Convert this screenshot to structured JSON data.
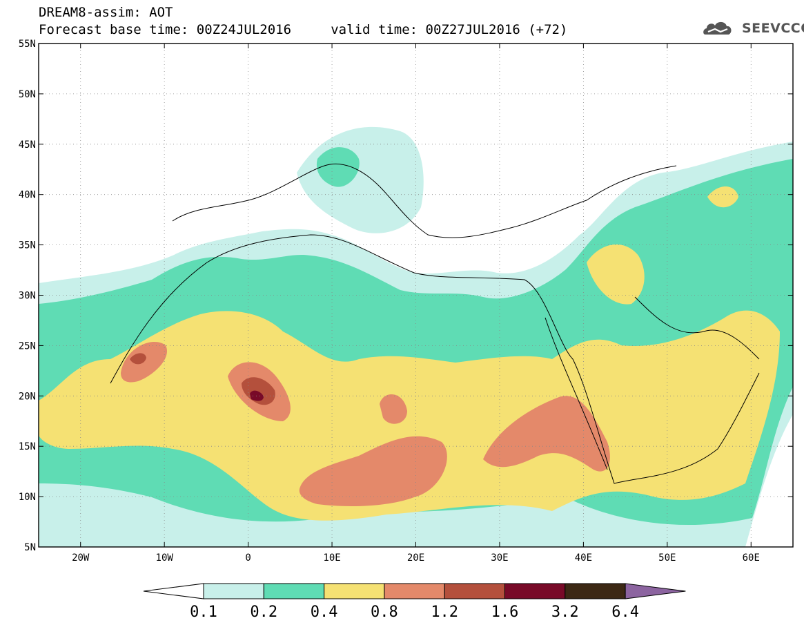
{
  "header": {
    "title_line1": "DREAM8-assim: AOT",
    "title_line2": "Forecast base time: 00Z24JUL2016     valid time: 00Z27JUL2016 (+72)"
  },
  "logo": {
    "text": "SEEVCCC",
    "icon": "cloud-icon",
    "color": "#555555"
  },
  "map": {
    "lat_range": [
      5,
      55
    ],
    "lon_range": [
      -25,
      65
    ],
    "lat_ticks": [
      {
        "value": 55,
        "label": "55N"
      },
      {
        "value": 50,
        "label": "50N"
      },
      {
        "value": 45,
        "label": "45N"
      },
      {
        "value": 40,
        "label": "40N"
      },
      {
        "value": 35,
        "label": "35N"
      },
      {
        "value": 30,
        "label": "30N"
      },
      {
        "value": 25,
        "label": "25N"
      },
      {
        "value": 20,
        "label": "20N"
      },
      {
        "value": 15,
        "label": "15N"
      },
      {
        "value": 10,
        "label": "10N"
      },
      {
        "value": 5,
        "label": "5N"
      }
    ],
    "lon_ticks": [
      {
        "value": -20,
        "label": "20W"
      },
      {
        "value": -10,
        "label": "10W"
      },
      {
        "value": 0,
        "label": "0"
      },
      {
        "value": 10,
        "label": "10E"
      },
      {
        "value": 20,
        "label": "20E"
      },
      {
        "value": 30,
        "label": "30E"
      },
      {
        "value": 40,
        "label": "40E"
      },
      {
        "value": 50,
        "label": "50E"
      },
      {
        "value": 60,
        "label": "60E"
      }
    ],
    "grid": "dotted"
  },
  "colorbar": {
    "levels": [
      "0.1",
      "0.2",
      "0.4",
      "0.8",
      "1.2",
      "1.6",
      "3.2",
      "6.4"
    ],
    "colors": [
      "#c8f0ea",
      "#5fdcb4",
      "#f5e173",
      "#e4896a",
      "#b4503c",
      "#780a28",
      "#3c2814",
      "#8c64a0"
    ]
  },
  "colors": {
    "c01": "#c8f0ea",
    "c02": "#5fdcb4",
    "c04": "#f5e173",
    "c08": "#e4896a",
    "c12": "#b4503c",
    "c16": "#780a28",
    "c32": "#3c2814",
    "c64": "#8c64a0"
  }
}
